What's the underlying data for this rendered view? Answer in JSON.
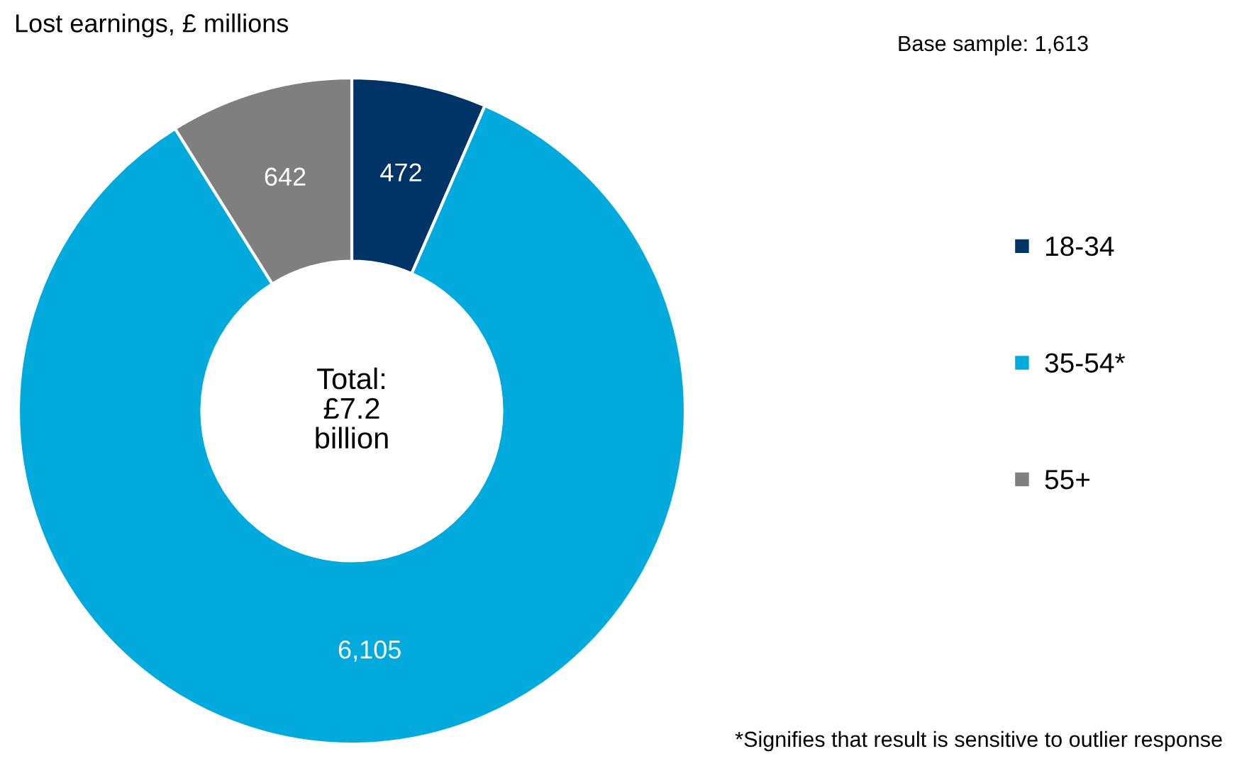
{
  "chart_data": {
    "type": "donut",
    "title": "Lost earnings, £ millions",
    "subtitle": "Base sample: 1,613",
    "categories": [
      "18-34",
      "35-54*",
      "55+"
    ],
    "values": [
      472,
      6105,
      642
    ],
    "value_labels": [
      "472",
      "6,105",
      "642"
    ],
    "colors": [
      "#003366",
      "#00aadd",
      "#7f7f7f"
    ],
    "legend": "right",
    "annotations": [
      "Total:\n£7.2\nbillion",
      "*Signifies that result is sensitive to outlier response"
    ]
  }
}
